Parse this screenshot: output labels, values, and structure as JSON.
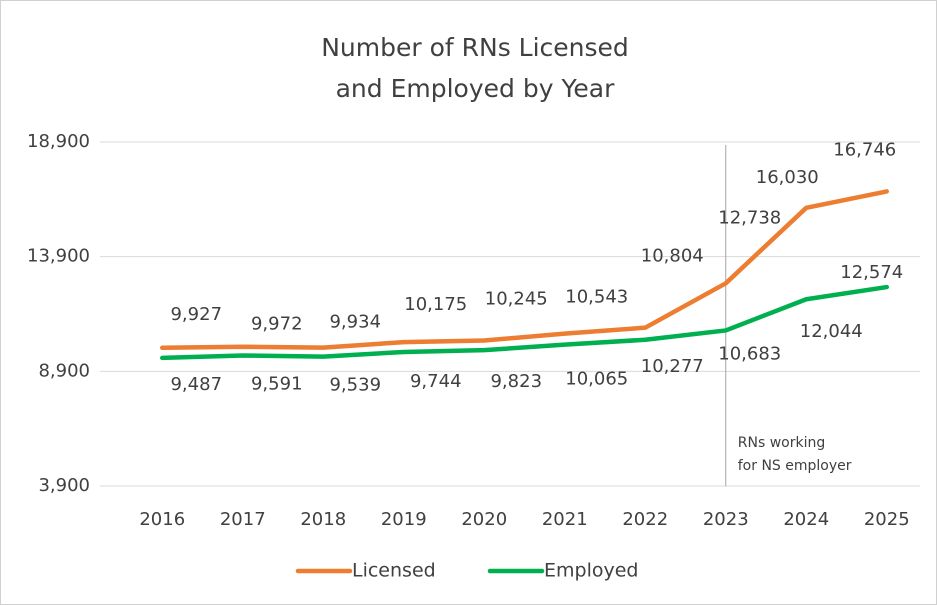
{
  "chart_data": {
    "type": "line",
    "title": [
      "Number of RNs Licensed",
      "and Employed by Year"
    ],
    "categories": [
      "2016",
      "2017",
      "2018",
      "2019",
      "2020",
      "2021",
      "2022",
      "2023",
      "2024",
      "2025"
    ],
    "series": [
      {
        "name": "Licensed",
        "color": "#ed7d31",
        "values": [
          9927,
          9972,
          9934,
          10175,
          10245,
          10543,
          10804,
          12738,
          16030,
          16746
        ],
        "value_labels": [
          "9,927",
          "9,972",
          "9,934",
          "10,175",
          "10,245",
          "10,543",
          "10,804",
          "12,738",
          "16,030",
          "16,746"
        ]
      },
      {
        "name": "Employed",
        "color": "#00b050",
        "values": [
          9487,
          9591,
          9539,
          9744,
          9823,
          10065,
          10277,
          10683,
          12044,
          12574
        ],
        "value_labels": [
          "9,487",
          "9,591",
          "9,539",
          "9,744",
          "9,823",
          "10,065",
          "10,277",
          "10,683",
          "12,044",
          "12,574"
        ]
      }
    ],
    "ylim": [
      3900,
      18900
    ],
    "yticks": [
      {
        "value": 3900,
        "label": "3,900"
      },
      {
        "value": 8900,
        "label": "8,900"
      },
      {
        "value": 13900,
        "label": "13,900"
      },
      {
        "value": 18900,
        "label": "18,900"
      }
    ],
    "grid": true,
    "legend": "bottom",
    "annotation": {
      "x": "2023",
      "text": [
        "RNs working",
        "for NS employer"
      ]
    }
  }
}
